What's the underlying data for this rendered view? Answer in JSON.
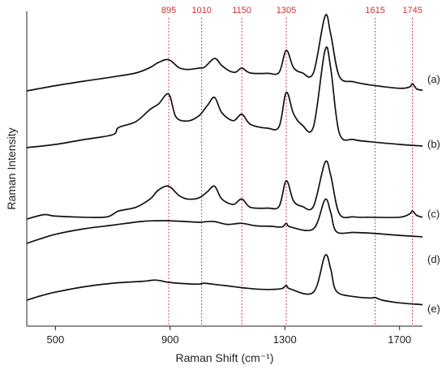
{
  "chart_data": {
    "type": "line",
    "xlabel": "Raman Shift (cm⁻¹)",
    "ylabel": "Raman Intensity",
    "xlim": [
      400,
      1780
    ],
    "x_ticks": [
      500,
      900,
      1300,
      1700
    ],
    "y_ticks_shown": false,
    "grid": false,
    "reference_lines": {
      "color": "#d32f2f",
      "style": "dotted",
      "positions": [
        895,
        1010,
        1150,
        1305,
        1615,
        1745
      ],
      "labels": [
        "895",
        "1010",
        "1150",
        "1305",
        "1615",
        "1745"
      ]
    },
    "series": [
      {
        "name": "(a)",
        "x": [
          400,
          500,
          600,
          700,
          780,
          830,
          860,
          895,
          930,
          960,
          1000,
          1020,
          1055,
          1080,
          1110,
          1130,
          1150,
          1180,
          1240,
          1280,
          1305,
          1330,
          1360,
          1400,
          1440,
          1460,
          1490,
          1540,
          1600,
          1700,
          1735,
          1745,
          1760,
          1780
        ],
        "y": [
          0.4,
          0.56,
          0.7,
          0.83,
          0.95,
          1.12,
          1.28,
          1.36,
          1.12,
          1.06,
          1.1,
          1.13,
          1.4,
          1.18,
          1.0,
          0.98,
          1.1,
          0.95,
          0.94,
          0.97,
          1.65,
          1.12,
          0.96,
          0.96,
          2.7,
          2.15,
          0.85,
          0.68,
          0.58,
          0.48,
          0.52,
          0.62,
          0.46,
          0.42
        ]
      },
      {
        "name": "(b)",
        "x": [
          400,
          500,
          600,
          700,
          720,
          780,
          830,
          860,
          895,
          920,
          960,
          1000,
          1030,
          1055,
          1080,
          1120,
          1150,
          1180,
          1240,
          1280,
          1305,
          1330,
          1360,
          1400,
          1440,
          1460,
          1490,
          1540,
          1600,
          1700,
          1780
        ],
        "y": [
          0.0,
          0.1,
          0.25,
          0.4,
          0.62,
          0.8,
          1.18,
          1.35,
          1.65,
          0.95,
          0.82,
          0.98,
          1.3,
          1.55,
          1.08,
          0.83,
          1.03,
          0.72,
          0.6,
          0.65,
          1.7,
          1.05,
          0.7,
          0.65,
          3.0,
          2.45,
          0.45,
          0.25,
          0.18,
          0.1,
          0.05
        ]
      },
      {
        "name": "(c)",
        "x": [
          400,
          460,
          500,
          600,
          680,
          720,
          780,
          830,
          860,
          895,
          930,
          960,
          1000,
          1030,
          1055,
          1080,
          1120,
          1150,
          1180,
          1240,
          1280,
          1305,
          1330,
          1360,
          1400,
          1440,
          1460,
          1490,
          1540,
          1600,
          1700,
          1735,
          1745,
          1760,
          1780
        ],
        "y": [
          0.0,
          0.12,
          0.08,
          0.05,
          0.06,
          0.22,
          0.32,
          0.55,
          0.8,
          0.9,
          0.65,
          0.55,
          0.58,
          0.75,
          0.9,
          0.55,
          0.4,
          0.55,
          0.32,
          0.3,
          0.35,
          1.05,
          0.5,
          0.35,
          0.35,
          1.55,
          1.2,
          0.15,
          0.06,
          0.05,
          0.05,
          0.14,
          0.22,
          0.1,
          0.05
        ]
      },
      {
        "name": "(d)",
        "x": [
          400,
          450,
          500,
          600,
          700,
          800,
          850,
          895,
          950,
          1000,
          1050,
          1100,
          1150,
          1200,
          1250,
          1290,
          1305,
          1320,
          1400,
          1440,
          1460,
          1480,
          1540,
          1600,
          1700,
          1780
        ],
        "y": [
          0.0,
          0.13,
          0.25,
          0.4,
          0.5,
          0.6,
          0.62,
          0.62,
          0.6,
          0.58,
          0.6,
          0.52,
          0.55,
          0.48,
          0.47,
          0.45,
          0.55,
          0.45,
          0.4,
          1.2,
          0.85,
          0.32,
          0.3,
          0.28,
          0.22,
          0.18
        ]
      },
      {
        "name": "(e)",
        "x": [
          400,
          450,
          500,
          600,
          700,
          800,
          850,
          895,
          950,
          1000,
          1020,
          1060,
          1100,
          1150,
          1200,
          1250,
          1290,
          1305,
          1320,
          1400,
          1440,
          1460,
          1480,
          1540,
          1600,
          1615,
          1640,
          1700,
          1780
        ],
        "y": [
          0.0,
          0.1,
          0.18,
          0.3,
          0.38,
          0.42,
          0.45,
          0.4,
          0.37,
          0.36,
          0.38,
          0.35,
          0.32,
          0.28,
          0.25,
          0.24,
          0.26,
          0.33,
          0.25,
          0.18,
          1.0,
          0.7,
          0.2,
          0.08,
          0.05,
          0.06,
          0.0,
          -0.06,
          -0.1
        ]
      }
    ]
  }
}
